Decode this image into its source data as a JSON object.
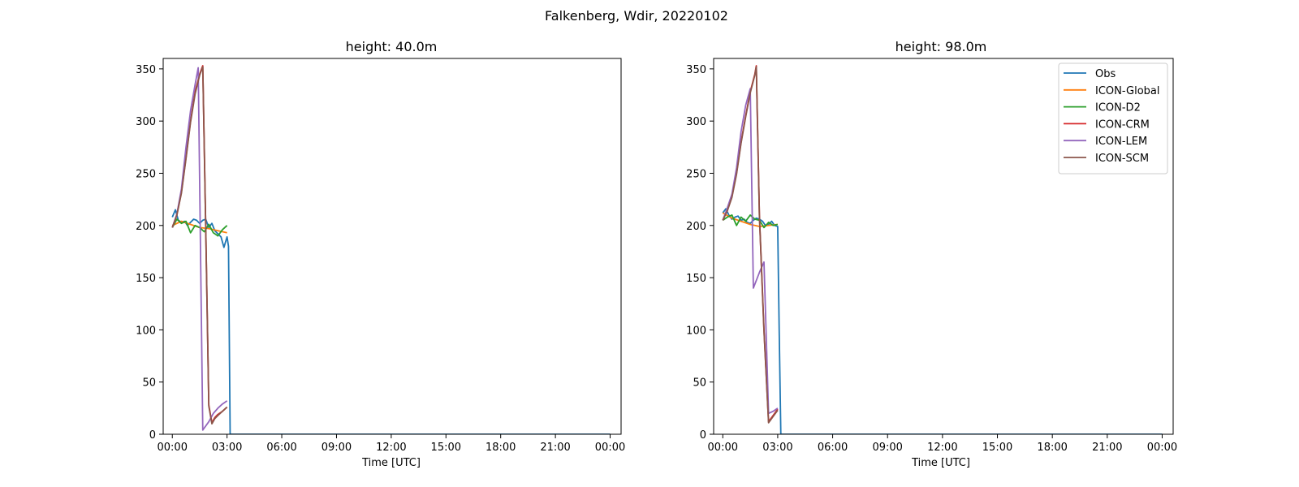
{
  "figure": {
    "suptitle": "Falkenberg, Wdir, 20220102"
  },
  "colors": {
    "Obs": "#1f77b4",
    "ICON-Global": "#ff7f0e",
    "ICON-D2": "#2ca02c",
    "ICON-CRM": "#d62728",
    "ICON-LEM": "#9467bd",
    "ICON-SCM": "#8c564b"
  },
  "chart_data": [
    {
      "type": "line",
      "title": "height: 40.0m",
      "xlabel": "Time [UTC]",
      "ylabel": "",
      "x_unit": "hours since 00:00 UTC 2022-01-02",
      "xlim": [
        -0.5,
        24.6
      ],
      "ylim": [
        0,
        360
      ],
      "xticks": [
        0,
        3,
        6,
        9,
        12,
        15,
        18,
        21,
        24
      ],
      "xtick_labels": [
        "00:00",
        "03:00",
        "06:00",
        "09:00",
        "12:00",
        "15:00",
        "18:00",
        "21:00",
        "00:00"
      ],
      "yticks": [
        0,
        50,
        100,
        150,
        200,
        250,
        300,
        350
      ],
      "ytick_labels": [
        "0",
        "50",
        "100",
        "150",
        "200",
        "250",
        "300",
        "350"
      ],
      "legend": false,
      "series": [
        {
          "name": "Obs",
          "x": [
            0,
            0.17,
            0.33,
            0.5,
            0.67,
            0.83,
            1.0,
            1.17,
            1.33,
            1.5,
            1.67,
            1.83,
            2.0,
            2.17,
            2.33,
            2.5,
            2.67,
            2.83,
            3.0,
            3.08,
            3.17,
            3.25,
            24
          ],
          "y": [
            208,
            215,
            205,
            203,
            204,
            200,
            203,
            206,
            205,
            202,
            205,
            206,
            198,
            202,
            195,
            192,
            189,
            179,
            189,
            180,
            0,
            0,
            0
          ]
        },
        {
          "name": "ICON-Global",
          "x": [
            0,
            0.5,
            1,
            1.5,
            2,
            2.5,
            3
          ],
          "y": [
            200,
            204,
            201,
            198,
            197,
            195,
            193
          ]
        },
        {
          "name": "ICON-D2",
          "x": [
            0,
            0.25,
            0.5,
            0.75,
            1,
            1.25,
            1.5,
            1.75,
            2,
            2.25,
            2.5,
            2.75,
            3
          ],
          "y": [
            198,
            206,
            202,
            204,
            193,
            200,
            198,
            194,
            201,
            193,
            190,
            196,
            200
          ]
        },
        {
          "name": "ICON-CRM",
          "x": [
            0,
            0.25,
            0.5,
            0.75,
            1,
            1.25,
            1.5,
            1.67,
            1.83,
            2.0,
            2.17,
            2.33,
            2.5,
            2.75,
            3
          ],
          "y": [
            198,
            210,
            232,
            265,
            300,
            328,
            345,
            353,
            200,
            28,
            11,
            16,
            19,
            22,
            26
          ]
        },
        {
          "name": "ICON-LEM",
          "x": [
            0,
            0.25,
            0.5,
            0.75,
            1,
            1.25,
            1.42,
            1.67,
            2.0,
            2.25,
            2.5,
            2.75,
            3
          ],
          "y": [
            198,
            211,
            235,
            275,
            310,
            335,
            351,
            4,
            12,
            20,
            25,
            29,
            32
          ]
        },
        {
          "name": "ICON-SCM",
          "x": [
            0,
            0.25,
            0.5,
            0.75,
            1,
            1.25,
            1.5,
            1.67,
            1.83,
            2.0,
            2.17,
            2.33,
            2.5,
            2.75,
            3
          ],
          "y": [
            198,
            210,
            231,
            264,
            299,
            326,
            344,
            352,
            200,
            27,
            10,
            15,
            18,
            22,
            26
          ]
        }
      ]
    },
    {
      "type": "line",
      "title": "height: 98.0m",
      "xlabel": "Time [UTC]",
      "ylabel": "",
      "x_unit": "hours since 00:00 UTC 2022-01-02",
      "xlim": [
        -0.5,
        24.6
      ],
      "ylim": [
        0,
        360
      ],
      "xticks": [
        0,
        3,
        6,
        9,
        12,
        15,
        18,
        21,
        24
      ],
      "xtick_labels": [
        "00:00",
        "03:00",
        "06:00",
        "09:00",
        "12:00",
        "15:00",
        "18:00",
        "21:00",
        "00:00"
      ],
      "yticks": [
        0,
        50,
        100,
        150,
        200,
        250,
        300,
        350
      ],
      "ytick_labels": [
        "0",
        "50",
        "100",
        "150",
        "200",
        "250",
        "300",
        "350"
      ],
      "legend": true,
      "legend_location": "upper right",
      "series": [
        {
          "name": "Obs",
          "x": [
            0,
            0.17,
            0.33,
            0.5,
            0.67,
            0.83,
            1.0,
            1.17,
            1.33,
            1.5,
            1.67,
            1.83,
            2.0,
            2.17,
            2.33,
            2.5,
            2.67,
            2.83,
            3.0,
            3.08,
            3.17,
            3.25,
            24
          ],
          "y": [
            212,
            216,
            210,
            206,
            208,
            209,
            205,
            206,
            203,
            202,
            205,
            207,
            206,
            204,
            200,
            201,
            204,
            200,
            199,
            100,
            0,
            0,
            0
          ]
        },
        {
          "name": "ICON-Global",
          "x": [
            0,
            0.5,
            1,
            1.5,
            2,
            2.5,
            3
          ],
          "y": [
            212,
            207,
            204,
            201,
            199,
            200,
            201
          ]
        },
        {
          "name": "ICON-D2",
          "x": [
            0,
            0.25,
            0.5,
            0.75,
            1,
            1.25,
            1.5,
            1.75,
            2,
            2.25,
            2.5,
            2.75,
            3
          ],
          "y": [
            205,
            208,
            210,
            200,
            208,
            204,
            210,
            206,
            205,
            198,
            203,
            200,
            201
          ]
        },
        {
          "name": "ICON-CRM",
          "x": [
            0,
            0.25,
            0.5,
            0.75,
            1,
            1.25,
            1.5,
            1.75,
            1.83,
            2.0,
            2.25,
            2.5,
            2.75,
            3
          ],
          "y": [
            205,
            215,
            228,
            250,
            280,
            305,
            328,
            345,
            353,
            210,
            100,
            12,
            18,
            24
          ]
        },
        {
          "name": "ICON-LEM",
          "x": [
            0,
            0.25,
            0.5,
            0.75,
            1,
            1.25,
            1.5,
            1.67,
            2.0,
            2.25,
            2.5,
            2.75,
            3
          ],
          "y": [
            205,
            217,
            230,
            255,
            290,
            315,
            331,
            140,
            155,
            165,
            20,
            22,
            25
          ]
        },
        {
          "name": "ICON-SCM",
          "x": [
            0,
            0.25,
            0.5,
            0.75,
            1,
            1.25,
            1.5,
            1.75,
            1.83,
            2.0,
            2.25,
            2.5,
            2.75,
            3
          ],
          "y": [
            205,
            214,
            227,
            249,
            279,
            304,
            327,
            344,
            352,
            209,
            99,
            11,
            17,
            23
          ]
        }
      ]
    }
  ]
}
